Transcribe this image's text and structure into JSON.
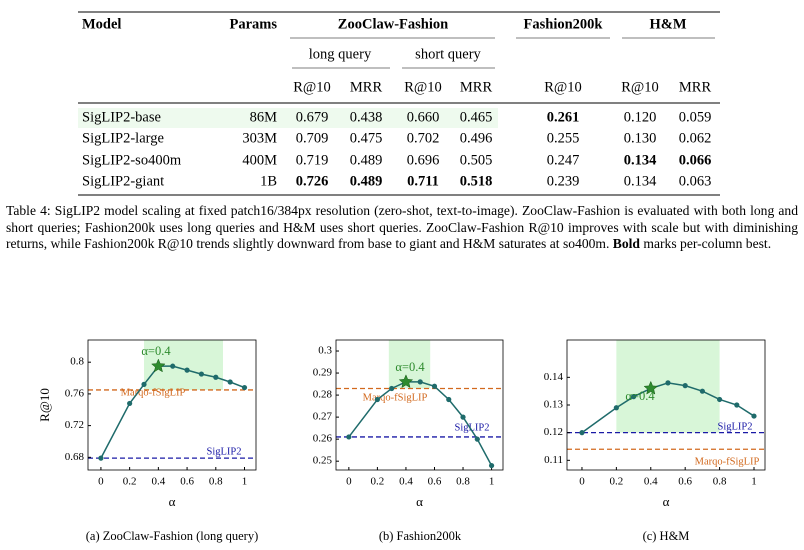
{
  "table": {
    "header": [
      "Model",
      "Params",
      "ZooClaw-Fashion",
      "Fashion200k",
      "H&M"
    ],
    "subheader": [
      "long query",
      "short query"
    ],
    "metrics": [
      "R@10",
      "MRR",
      "R@10",
      "MRR",
      "R@10",
      "R@10",
      "MRR"
    ],
    "rows": [
      [
        "SigLIP2-base",
        "86M",
        "0.679",
        "0.438",
        "0.660",
        "0.465",
        "0.261",
        "0.120",
        "0.059"
      ],
      [
        "SigLIP2-large",
        "303M",
        "0.709",
        "0.475",
        "0.702",
        "0.496",
        "0.255",
        "0.130",
        "0.062"
      ],
      [
        "SigLIP2-so400m",
        "400M",
        "0.719",
        "0.489",
        "0.696",
        "0.505",
        "0.247",
        "0.134",
        "0.066"
      ],
      [
        "SigLIP2-giant",
        "1B",
        "0.726",
        "0.489",
        "0.711",
        "0.518",
        "0.239",
        "0.134",
        "0.063"
      ]
    ],
    "bold": [
      [
        6
      ],
      [],
      [
        7,
        8
      ],
      [
        2,
        3,
        4,
        5
      ]
    ]
  },
  "caption": {
    "text": "Table 4: SigLIP2 model scaling at fixed patch16/384px resolution (zero-shot, text-to-image). ZooClaw-Fashion is evaluated with both long and short queries; Fashion200k uses long queries and H&M uses short queries. ZooClaw-Fashion R@10 improves with scale but with diminishing returns, while Fashion200k R@10 trends slightly downward from base to giant and H&M saturates at so400m. ",
    "bold": "Bold",
    "after": " marks per-column best."
  },
  "chart_data": [
    {
      "type": "line",
      "caption": "(a) ZooClaw-Fashion (long query)",
      "ylabel": "R@10",
      "xlabel": "α",
      "x": [
        0,
        0.2,
        0.3,
        0.4,
        0.5,
        0.6,
        0.7,
        0.8,
        0.9,
        1
      ],
      "series": [
        {
          "color": "#1f6b6b",
          "values": [
            0.679,
            0.748,
            0.772,
            0.795,
            0.795,
            0.79,
            0.785,
            0.781,
            0.775,
            0.768
          ]
        }
      ],
      "references": [
        {
          "name": "Marqo-fSigLIP",
          "value": 0.765,
          "color": "#d2691e"
        },
        {
          "name": "SigLIP2",
          "value": 0.679,
          "color": "#1a1aa6"
        }
      ],
      "star_x": 0.4,
      "annotation": "α=0.4",
      "shade": {
        "x": [
          0.3,
          0.85
        ],
        "y0": 0.765
      },
      "xlim": [
        -0.09,
        1.08
      ],
      "ylim": [
        0.664,
        0.828
      ],
      "xticks": [
        0,
        0.2,
        0.4,
        0.6,
        0.8,
        1
      ],
      "yticks": [
        0.68,
        0.72,
        0.76,
        0.8
      ]
    },
    {
      "type": "line",
      "caption": "(b) Fashion200k",
      "xlabel": "α",
      "x": [
        0,
        0.2,
        0.3,
        0.4,
        0.5,
        0.6,
        0.7,
        0.8,
        0.9,
        1
      ],
      "series": [
        {
          "color": "#1f6b6b",
          "values": [
            0.261,
            0.278,
            0.283,
            0.286,
            0.286,
            0.284,
            0.278,
            0.27,
            0.26,
            0.248
          ]
        }
      ],
      "references": [
        {
          "name": "Marqo-fSigLIP",
          "value": 0.283,
          "color": "#d2691e"
        },
        {
          "name": "SigLIP2",
          "value": 0.261,
          "color": "#1a1aa6"
        }
      ],
      "star_x": 0.4,
      "annotation": "α=0.4",
      "shade": {
        "x": [
          0.28,
          0.57
        ],
        "y0": 0.283
      },
      "xlim": [
        -0.09,
        1.08
      ],
      "ylim": [
        0.246,
        0.305
      ],
      "xticks": [
        0,
        0.2,
        0.4,
        0.6,
        0.8,
        1
      ],
      "yticks": [
        0.25,
        0.26,
        0.27,
        0.28,
        0.29,
        0.3
      ]
    },
    {
      "type": "line",
      "caption": "(c) H&M",
      "xlabel": "α",
      "x": [
        0,
        0.2,
        0.3,
        0.4,
        0.5,
        0.6,
        0.7,
        0.8,
        0.9,
        1
      ],
      "series": [
        {
          "color": "#1f6b6b",
          "values": [
            0.12,
            0.129,
            0.133,
            0.136,
            0.138,
            0.137,
            0.135,
            0.132,
            0.13,
            0.126
          ]
        }
      ],
      "references": [
        {
          "name": "SigLIP2",
          "value": 0.12,
          "color": "#1a1aa6"
        },
        {
          "name": "Marqo-fSigLIP",
          "value": 0.114,
          "color": "#d2691e"
        }
      ],
      "star_x": 0.4,
      "annotation": "α=0.4",
      "shade": {
        "x": [
          0.2,
          0.8
        ],
        "y0": 0.12
      },
      "xlim": [
        -0.087,
        1.064
      ],
      "ylim": [
        0.1065,
        0.1535
      ],
      "xticks": [
        0,
        0.2,
        0.4,
        0.6,
        0.8,
        1
      ],
      "yticks": [
        0.11,
        0.12,
        0.13,
        0.14
      ]
    }
  ]
}
